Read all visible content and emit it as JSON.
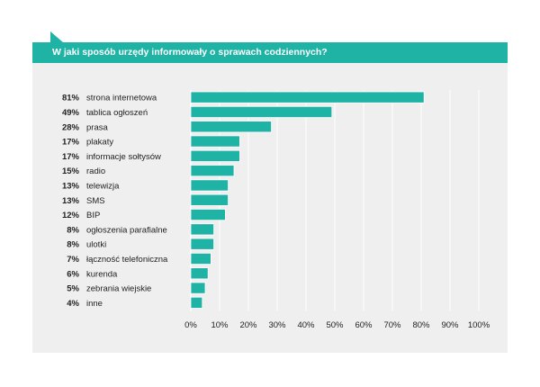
{
  "chart_data": {
    "type": "bar",
    "orientation": "horizontal",
    "title": "W jaki sposób urzędy informowały o sprawach codziennych?",
    "categories": [
      "strona internetowa",
      "tablica ogłoszeń",
      "prasa",
      "plakaty",
      "informacje sołtysów",
      "radio",
      "telewizja",
      "SMS",
      "BIP",
      "ogłoszenia parafialne",
      "ulotki",
      "łączność telefoniczna",
      "kurenda",
      "zebrania wiejskie",
      "inne"
    ],
    "value_labels": [
      "81%",
      "49%",
      "28%",
      "17%",
      "17%",
      "15%",
      "13%",
      "13%",
      "12%",
      "8%",
      "8%",
      "7%",
      "6%",
      "5%",
      "4%"
    ],
    "values": [
      81,
      49,
      28,
      17,
      17,
      15,
      13,
      13,
      12,
      8,
      8,
      7,
      6,
      5,
      4
    ],
    "xlim": [
      0,
      100
    ],
    "xticks": [
      "0%",
      "10%",
      "20%",
      "30%",
      "40%",
      "50%",
      "60%",
      "70%",
      "80%",
      "90%",
      "100%"
    ],
    "grid": true,
    "colors": {
      "bar": "#1fb3a6",
      "bar_border": "#ffffff",
      "grid": "#ffffff",
      "title_bg": "#1fb3a6",
      "panel_bg": "#efefef"
    }
  }
}
